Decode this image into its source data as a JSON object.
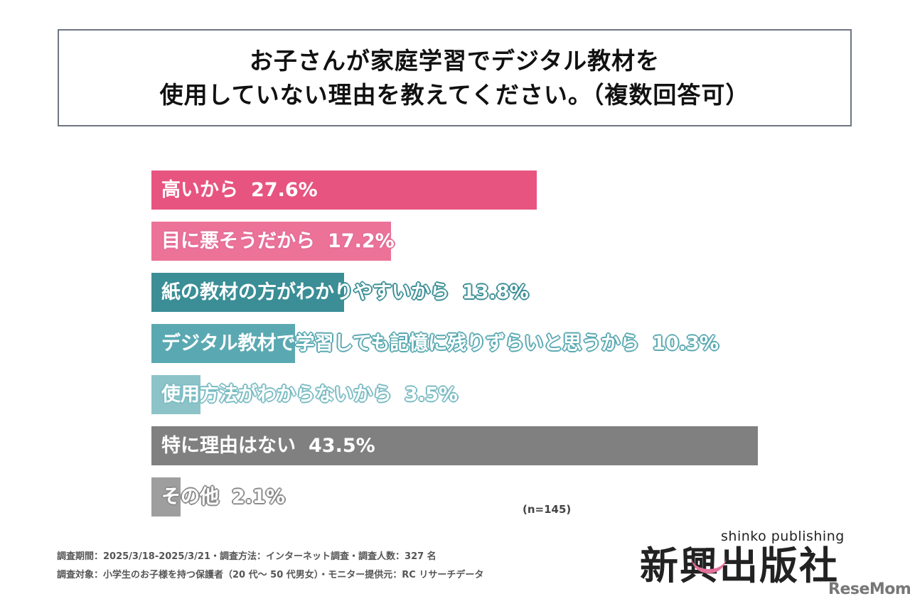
{
  "title": {
    "line1": "お子さんが家庭学習でデジタル教材を",
    "line2": "使用していない理由を教えてください。（複数回答可）"
  },
  "chart_data": {
    "type": "bar",
    "orientation": "horizontal",
    "title": "お子さんが家庭学習でデジタル教材を使用していない理由を教えてください。（複数回答可）",
    "categories": [
      "高いから",
      "目に悪そうだから",
      "紙の教材の方がわかりやすいから",
      "デジタル教材で学習しても記憶に残りずらいと思うから",
      "使用方法がわからないから",
      "特に理由はない",
      "その他"
    ],
    "values": [
      27.6,
      17.2,
      13.8,
      10.3,
      3.5,
      43.5,
      2.1
    ],
    "value_labels": [
      "27.6%",
      "17.2%",
      "13.8%",
      "10.3%",
      "3.5%",
      "43.5%",
      "2.1%"
    ],
    "colors": [
      "#e75480",
      "#ec7298",
      "#3b8e96",
      "#5aa9b2",
      "#8cc3c9",
      "#808080",
      "#9e9e9e"
    ],
    "unit": "%",
    "xlabel": "",
    "ylabel": "",
    "grid": false,
    "legend": null,
    "annotation": "(n=145)"
  },
  "note": {
    "n": "(n=145)"
  },
  "footnotes": [
    "調査期間：2025/3/18-2025/3/21・調査方法：インターネット調査・調査人数：327 名",
    "調査対象：小学生のお子様を持つ保護者（20 代～ 50 代男女）・モニター提供元：RC リサーチデータ"
  ],
  "logo": {
    "jp": "新興出版社",
    "en": "shinko publishing"
  },
  "watermark": "ReseMom."
}
